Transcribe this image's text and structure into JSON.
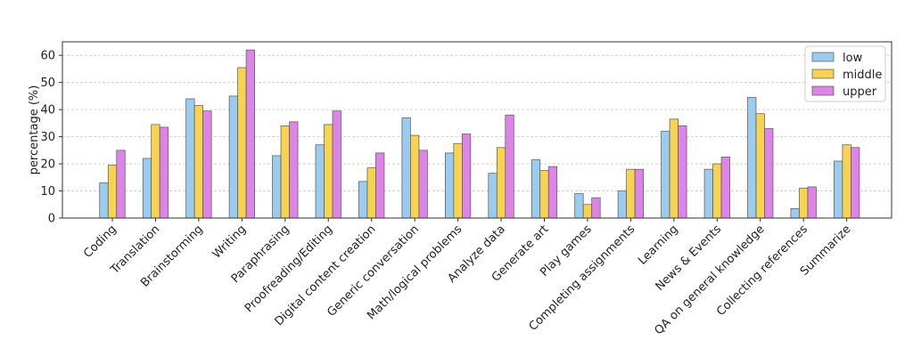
{
  "chart_data": {
    "type": "bar",
    "title": "",
    "xlabel": "",
    "ylabel": "percentage (%)",
    "ylim": [
      0,
      65
    ],
    "yticks": [
      0,
      10,
      20,
      30,
      40,
      50,
      60
    ],
    "grid": "horizontal dashed",
    "legend_position": "top-right",
    "categories": [
      "Coding",
      "Translation",
      "Brainstorming",
      "Writing",
      "Paraphrasing",
      "Proofreading/Editing",
      "Digital content creation",
      "Generic conversation",
      "Math/logical problems",
      "Analyze data",
      "Generate art",
      "Play games",
      "Completing assignments",
      "Learning",
      "News & Events",
      "QA on general knowledge",
      "Collecting references",
      "Summarize"
    ],
    "series": [
      {
        "name": "low",
        "color": "#9ccbf0",
        "values": [
          13,
          22,
          44,
          45,
          23,
          27,
          13.5,
          37,
          24,
          16.5,
          21.5,
          9,
          10,
          32,
          18,
          44.5,
          3.5,
          21
        ]
      },
      {
        "name": "middle",
        "color": "#f7d34f",
        "values": [
          19.5,
          34.5,
          41.5,
          55.5,
          34,
          34.5,
          18.5,
          30.5,
          27.5,
          26,
          17.5,
          5,
          18,
          36.5,
          20,
          38.5,
          11,
          27
        ]
      },
      {
        "name": "upper",
        "color": "#dd85e6",
        "values": [
          25,
          33.5,
          39.5,
          62,
          35.5,
          39.5,
          24,
          25,
          31,
          38,
          19,
          7.5,
          18,
          34,
          22.5,
          33,
          11.5,
          26
        ]
      }
    ]
  }
}
